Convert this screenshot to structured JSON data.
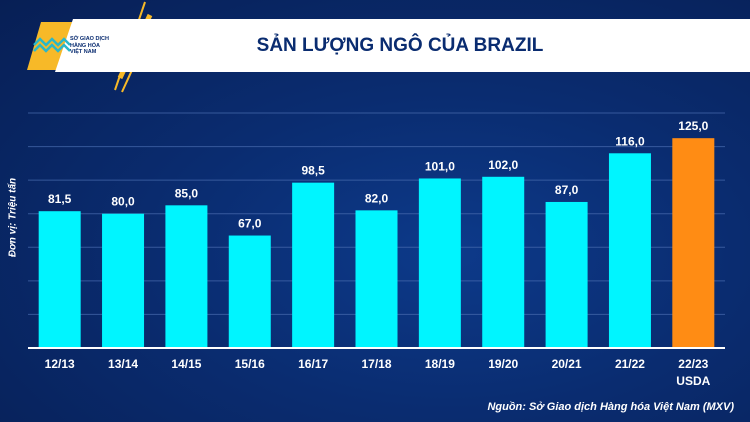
{
  "header": {
    "title": "SẢN LƯỢNG NGÔ CỦA BRAZIL",
    "logo_text": "SỞ GIAO DỊCH HÀNG HÓA VIỆT NAM",
    "logo_lines": [
      "SỞ GIAO DỊCH",
      "HÀNG HÓA",
      "VIỆT NAM"
    ]
  },
  "source": "Nguồn: Sở Giao dịch Hàng hóa Việt Nam (MXV)",
  "chart_data": {
    "type": "bar",
    "title": "SẢN LƯỢNG NGÔ CỦA BRAZIL",
    "ylabel": "Đơn vị: Triệu tấn",
    "xlabel": "",
    "categories": [
      "12/13",
      "13/14",
      "14/15",
      "15/16",
      "16/17",
      "17/18",
      "18/19",
      "19/20",
      "20/21",
      "21/22",
      "22/23"
    ],
    "category_sublabels": {
      "22/23": "USDA"
    },
    "values": [
      81.5,
      80.0,
      85.0,
      67.0,
      98.5,
      82.0,
      101.0,
      102.0,
      87.0,
      116.0,
      125.0
    ],
    "data_labels": [
      "81,5",
      "80,0",
      "85,0",
      "67,0",
      "98,5",
      "82,0",
      "101,0",
      "102,0",
      "87,0",
      "116,0",
      "125,0"
    ],
    "ylim": [
      0,
      140
    ],
    "grid": true,
    "colors": {
      "bar": "#00f5ff",
      "highlight": "#ff8c14",
      "highlight_category": "22/23"
    }
  }
}
